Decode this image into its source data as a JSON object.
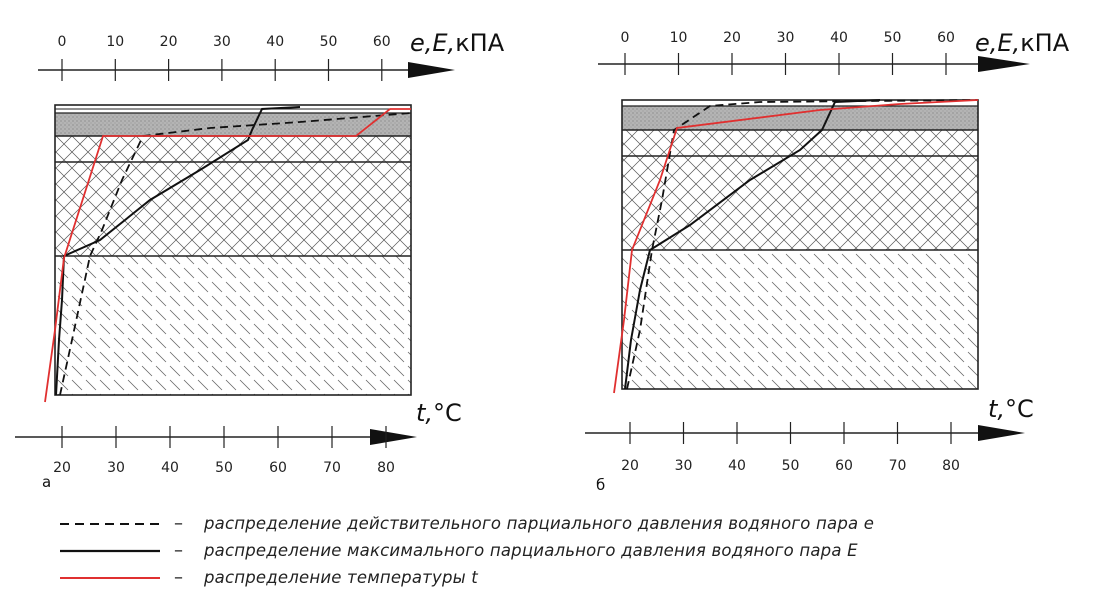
{
  "panels": [
    {
      "letter": "а",
      "top_axis": {
        "label_main": "e,E,",
        "label_unit": "кПА",
        "ticks": [
          "0",
          "10",
          "20",
          "30",
          "40",
          "50",
          "60"
        ]
      },
      "bottom_axis": {
        "label_main": "t,",
        "label_unit": "°C",
        "ticks": [
          "20",
          "30",
          "40",
          "50",
          "60",
          "70",
          "80"
        ]
      }
    },
    {
      "letter": "б",
      "top_axis": {
        "label_main": "e,E,",
        "label_unit": "кПА",
        "ticks": [
          "0",
          "10",
          "20",
          "30",
          "40",
          "50",
          "60"
        ]
      },
      "bottom_axis": {
        "label_main": "t,",
        "label_unit": "°C",
        "ticks": [
          "20",
          "30",
          "40",
          "50",
          "60",
          "70",
          "80"
        ]
      }
    }
  ],
  "legend": [
    {
      "style": "dashed",
      "color": "#111111",
      "dash": "–",
      "text": "распределение действительного парциального давления водяного пара е"
    },
    {
      "style": "solid",
      "color": "#111111",
      "dash": "–",
      "text": "распределение максимального парциального давления водяного пара Е"
    },
    {
      "style": "solid",
      "color": "#e03030",
      "dash": "–",
      "text": "распределение температуры t"
    }
  ],
  "colors": {
    "temperature_line": "#e03030",
    "pressure_lines": "#111111",
    "top_layer_fill": "#a9a9a9"
  }
}
